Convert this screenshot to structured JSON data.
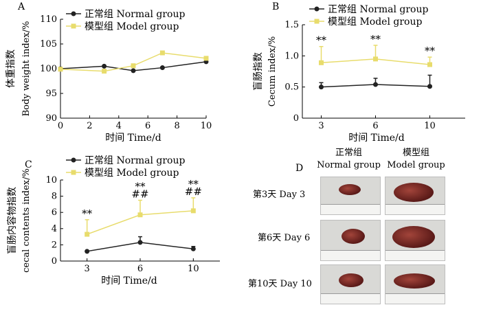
{
  "legend": {
    "normal": "正常组  Normal group",
    "model": "模型组  Model group"
  },
  "colors": {
    "normal": "#222222",
    "model": "#e8dc6c"
  },
  "chart_data": [
    {
      "panel": "A",
      "type": "line",
      "ylabel_cn": "体重指数",
      "ylabel_en": "Body weight index/%",
      "xlabel": "时间  Time/d",
      "xlim": [
        0,
        10
      ],
      "xticks": [
        0,
        2,
        4,
        6,
        8,
        10
      ],
      "ylim": [
        90,
        110
      ],
      "yticks": [
        90,
        95,
        100,
        105,
        110
      ],
      "series": [
        {
          "name": "正常组 Normal group",
          "x": [
            0,
            3,
            5,
            7,
            10
          ],
          "y": [
            100.0,
            100.5,
            99.6,
            100.2,
            101.4
          ]
        },
        {
          "name": "模型组 Model group",
          "x": [
            0,
            3,
            5,
            7,
            10
          ],
          "y": [
            99.9,
            99.5,
            100.6,
            103.2,
            102.1
          ]
        }
      ]
    },
    {
      "panel": "B",
      "type": "line",
      "ylabel_cn": "盲肠指数",
      "ylabel_en": "Cecum index/%",
      "xlabel": "时间  Time/d",
      "categories": [
        "3",
        "6",
        "10"
      ],
      "ylim": [
        0,
        1.5
      ],
      "yticks": [
        "0",
        "0.5",
        "1.0",
        "1.5"
      ],
      "series": [
        {
          "name": "正常组 Normal group",
          "values": [
            0.5,
            0.54,
            0.51
          ],
          "err": [
            0.07,
            0.1,
            0.18
          ]
        },
        {
          "name": "模型组 Model group",
          "values": [
            0.89,
            0.95,
            0.86
          ],
          "err": [
            0.26,
            0.22,
            0.12
          ]
        }
      ],
      "annotations": [
        "**",
        "**",
        "**"
      ]
    },
    {
      "panel": "C",
      "type": "line",
      "ylabel_cn": "盲肠内容物指数",
      "ylabel_en": "cecal contents index/%",
      "xlabel": "时间  Time/d",
      "categories": [
        "3",
        "6",
        "10"
      ],
      "ylim": [
        0,
        10
      ],
      "yticks": [
        "0",
        "2",
        "4",
        "6",
        "8",
        "10"
      ],
      "series": [
        {
          "name": "正常组 Normal group",
          "values": [
            1.2,
            2.3,
            1.5
          ],
          "err": [
            0.0,
            0.7,
            0.3
          ]
        },
        {
          "name": "模型组 Model group",
          "values": [
            3.3,
            5.7,
            6.2
          ],
          "err": [
            1.8,
            1.8,
            1.6
          ]
        }
      ],
      "annotations": [
        "**",
        "**\n##",
        "**\n##"
      ]
    }
  ],
  "panelD": {
    "label": "D",
    "col_normal_cn": "正常组",
    "col_normal_en": "Normal group",
    "col_model_cn": "模型组",
    "col_model_en": "Model group",
    "rows": [
      "第3天 Day 3",
      "第6天 Day 6",
      "第10天 Day 10"
    ]
  }
}
